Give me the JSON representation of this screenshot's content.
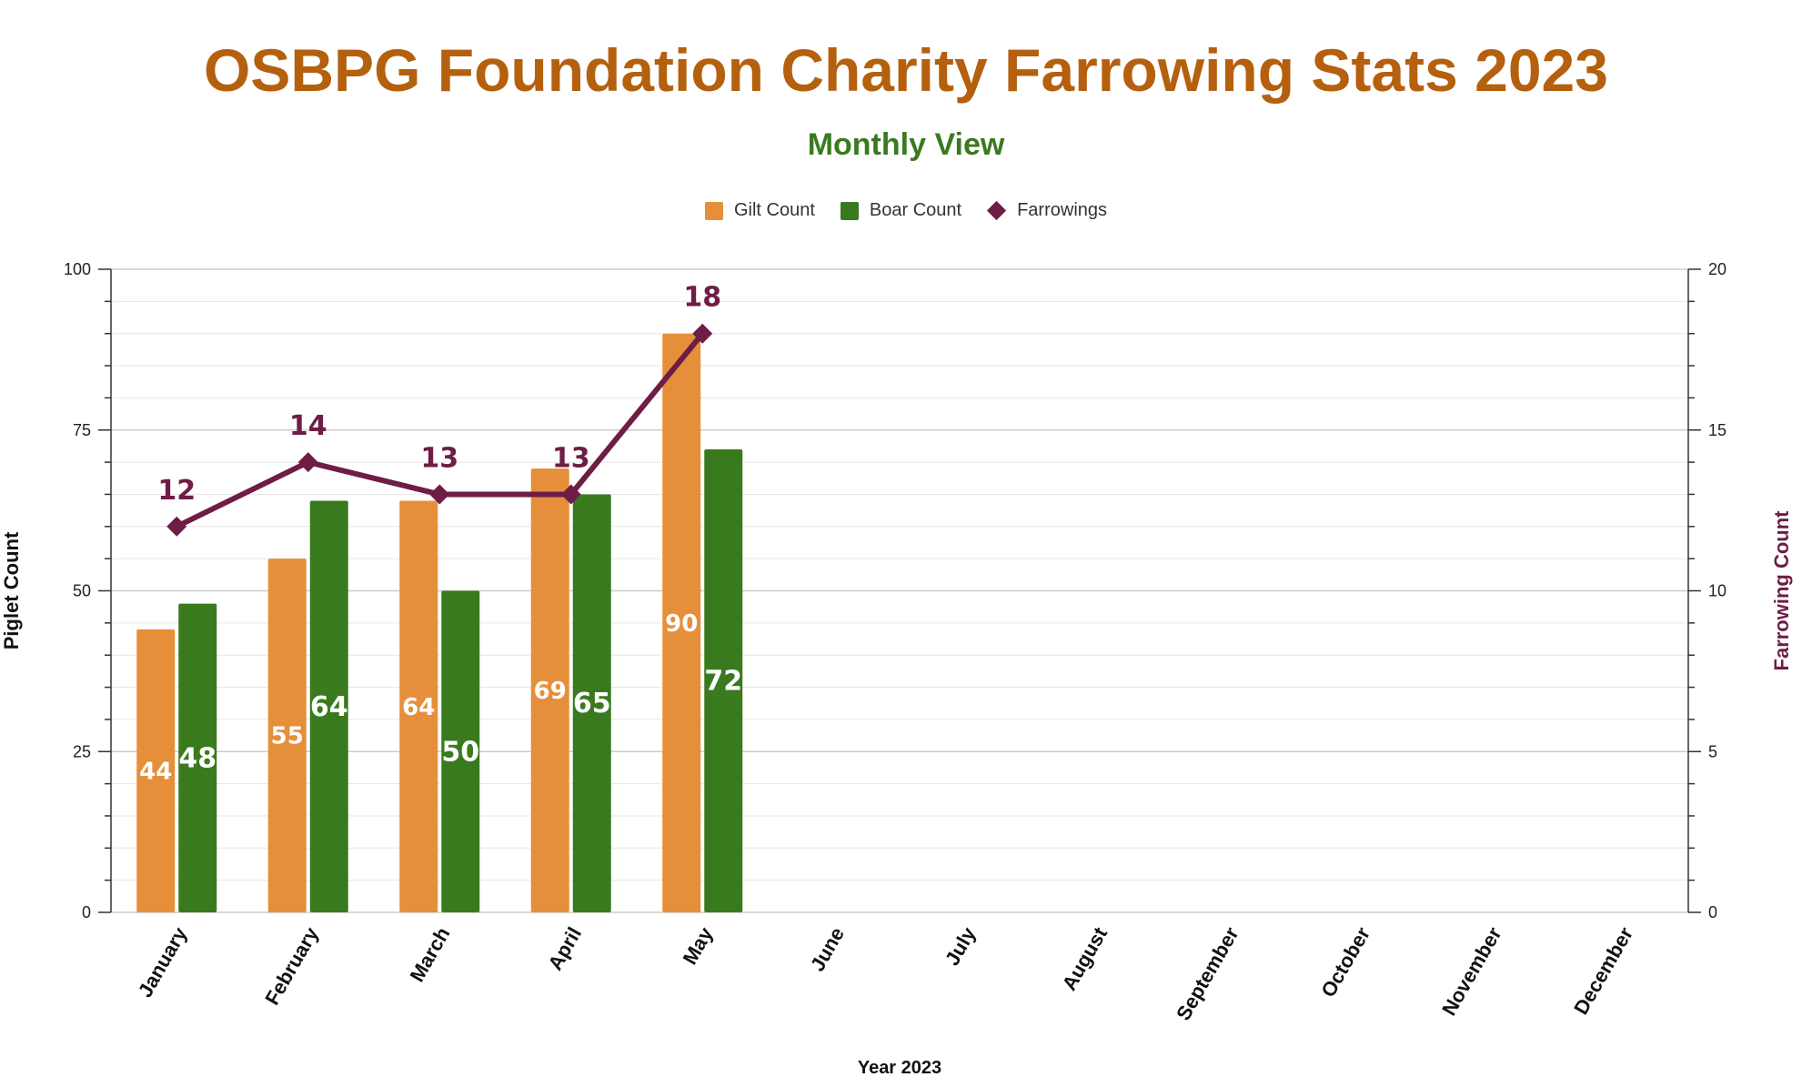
{
  "colors": {
    "title": "#b5600e",
    "subtitle": "#3a7a1f",
    "gilt": "#e68f3a",
    "boar": "#3a7a1f",
    "farrowings": "#6e1d46",
    "grid_major": "#cccccc",
    "grid_minor": "#e6e6e6",
    "axis": "#333333"
  },
  "legend": {
    "gilt": "Gilt Count",
    "boar": "Boar Count",
    "farrowings": "Farrowings"
  },
  "chart_data": {
    "type": "bar",
    "title": "OSBPG Foundation Charity Farrowing Stats 2023",
    "subtitle": "Monthly View",
    "xlabel": "Year 2023",
    "ylabel": "Piglet Count",
    "y2label": "Farrowing Count",
    "ylim": [
      0,
      100
    ],
    "y2lim": [
      0,
      20
    ],
    "yticks": [
      0,
      25,
      50,
      75,
      100
    ],
    "y2ticks": [
      0,
      5,
      10,
      15,
      20
    ],
    "categories": [
      "January",
      "February",
      "March",
      "April",
      "May",
      "June",
      "July",
      "August",
      "September",
      "October",
      "November",
      "December"
    ],
    "series": [
      {
        "name": "Gilt Count",
        "type": "bar",
        "axis": "left",
        "values": [
          44,
          55,
          64,
          69,
          90,
          null,
          null,
          null,
          null,
          null,
          null,
          null
        ]
      },
      {
        "name": "Boar Count",
        "type": "bar",
        "axis": "left",
        "values": [
          48,
          64,
          50,
          65,
          72,
          null,
          null,
          null,
          null,
          null,
          null,
          null
        ]
      },
      {
        "name": "Farrowings",
        "type": "line",
        "axis": "right",
        "values": [
          12,
          14,
          13,
          13,
          18,
          null,
          null,
          null,
          null,
          null,
          null,
          null
        ]
      }
    ]
  }
}
